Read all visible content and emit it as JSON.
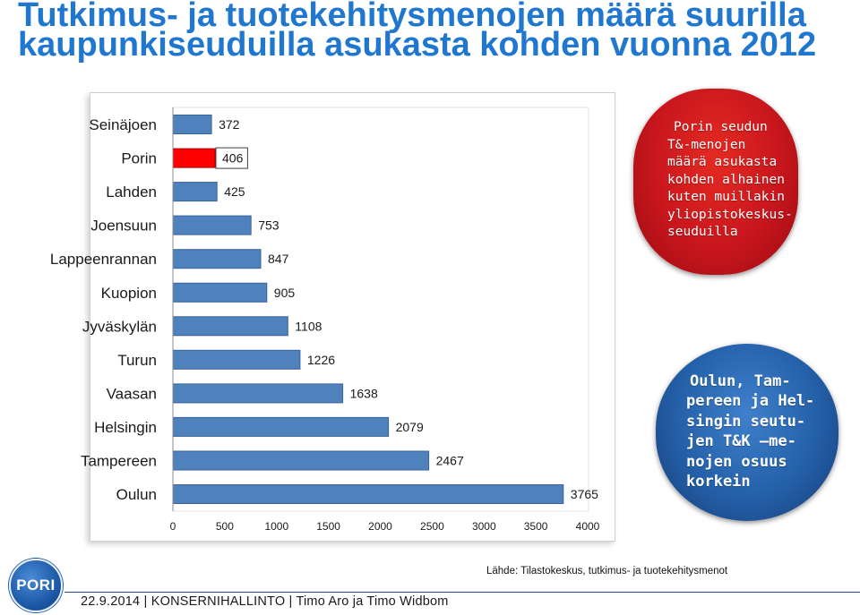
{
  "slide": {
    "title_lines": [
      "Tutkimus- ja tuotekehitysmenojen määrä suurilla",
      "kaupunkiseuduilla asukasta kohden vuonna 2012"
    ],
    "title_color": "#1F77D0"
  },
  "chart_data": {
    "type": "bar",
    "orientation": "horizontal",
    "categories": [
      "Seinäjoen",
      "Porin",
      "Lahden",
      "Joensuun",
      "Lappeenrannan",
      "Kuopion",
      "Jyväskylän",
      "Turun",
      "Vaasan",
      "Helsingin",
      "Tampereen",
      "Oulun"
    ],
    "values": [
      372,
      406,
      425,
      753,
      847,
      905,
      1108,
      1226,
      1638,
      2079,
      2467,
      3765
    ],
    "data_labels": true,
    "highlight": "Porin",
    "xlim": [
      0,
      4000
    ],
    "xticks": [
      0,
      500,
      1000,
      1500,
      2000,
      2500,
      3000,
      3500,
      4000
    ],
    "grid": false,
    "legend": "none",
    "colors": {
      "bar": "#4F81BD",
      "highlight": "#FF0000"
    }
  },
  "callouts": {
    "red": {
      "color": "#C8161D",
      "lines": [
        "Porin seudun",
        "T&-menojen",
        "määrä asukasta",
        "kohden alhainen",
        "kuten muillakin",
        "yliopistokeskus-",
        "seuduilla"
      ]
    },
    "blue": {
      "color": "#2460A8",
      "lines": [
        "Oulun, Tam-",
        "pereen ja Hel-",
        "singin seutu-",
        "jen T&K –me-",
        "nojen osuus",
        "korkein"
      ]
    }
  },
  "source": "Lähde: Tilastokeskus, tutkimus- ja tuotekehitysmenot",
  "footer": "22.9.2014 | KONSERNIHALLINTO | Timo Aro ja Timo Widbom",
  "logo": {
    "text": "PORI",
    "icon": "pori-logo-icon"
  }
}
